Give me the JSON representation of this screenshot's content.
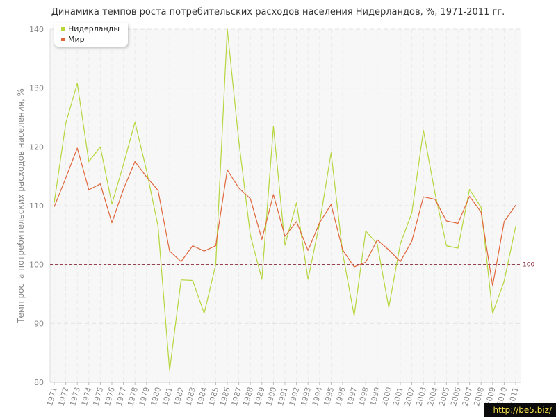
{
  "title": "Динамика темпов роста потребительских расходов населения Нидерландов, %, 1971-2011 гг.",
  "watermark": "http://be5.biz/",
  "chart_data": {
    "type": "line",
    "title": "Динамика темпов роста потребительских расходов населения Нидерландов, %, 1971-2011 гг.",
    "xlabel": "",
    "ylabel": "Темп роста потребительских расходов населения, %",
    "ylim": [
      80,
      140
    ],
    "yticks": [
      80,
      90,
      100,
      110,
      120,
      130,
      140
    ],
    "grid": true,
    "legend_position": "top-left",
    "reference_line": {
      "value": 100,
      "label": "100",
      "color": "#8b2a3a"
    },
    "categories": [
      "1971",
      "1972",
      "1973",
      "1974",
      "1975",
      "1976",
      "1977",
      "1978",
      "1979",
      "1980",
      "1981",
      "1982",
      "1983",
      "1984",
      "1985",
      "1986",
      "1987",
      "1988",
      "1989",
      "1990",
      "1991",
      "1992",
      "1993",
      "1994",
      "1995",
      "1996",
      "1997",
      "1998",
      "1999",
      "2000",
      "2001",
      "2002",
      "2003",
      "2004",
      "2005",
      "2006",
      "2007",
      "2008",
      "2009",
      "2010",
      "2011"
    ],
    "series": [
      {
        "name": "Нидерланды",
        "color": "#b5d63c",
        "values": [
          110.5,
          124.0,
          130.8,
          117.5,
          120.0,
          110.3,
          117.0,
          124.2,
          116.0,
          106.5,
          82.0,
          97.4,
          97.3,
          91.7,
          100.0,
          140.0,
          121.0,
          105.0,
          97.5,
          123.5,
          103.3,
          110.5,
          97.5,
          107.0,
          119.0,
          102.0,
          91.3,
          105.7,
          103.5,
          92.7,
          103.5,
          108.8,
          122.8,
          112.2,
          103.2,
          102.8,
          112.8,
          109.7,
          91.7,
          97.2,
          106.5
        ]
      },
      {
        "name": "Мир",
        "color": "#e0663a",
        "values": [
          109.8,
          114.7,
          119.8,
          112.7,
          113.7,
          107.1,
          112.8,
          117.5,
          114.9,
          112.6,
          102.3,
          100.5,
          103.2,
          102.3,
          103.2,
          116.1,
          113.0,
          111.2,
          104.3,
          111.9,
          104.8,
          107.3,
          102.4,
          107.1,
          110.2,
          102.5,
          99.6,
          100.4,
          104.2,
          102.5,
          100.5,
          104.0,
          111.5,
          111.1,
          107.4,
          107.0,
          111.6,
          108.9,
          96.4,
          107.3,
          110.1
        ]
      }
    ]
  }
}
